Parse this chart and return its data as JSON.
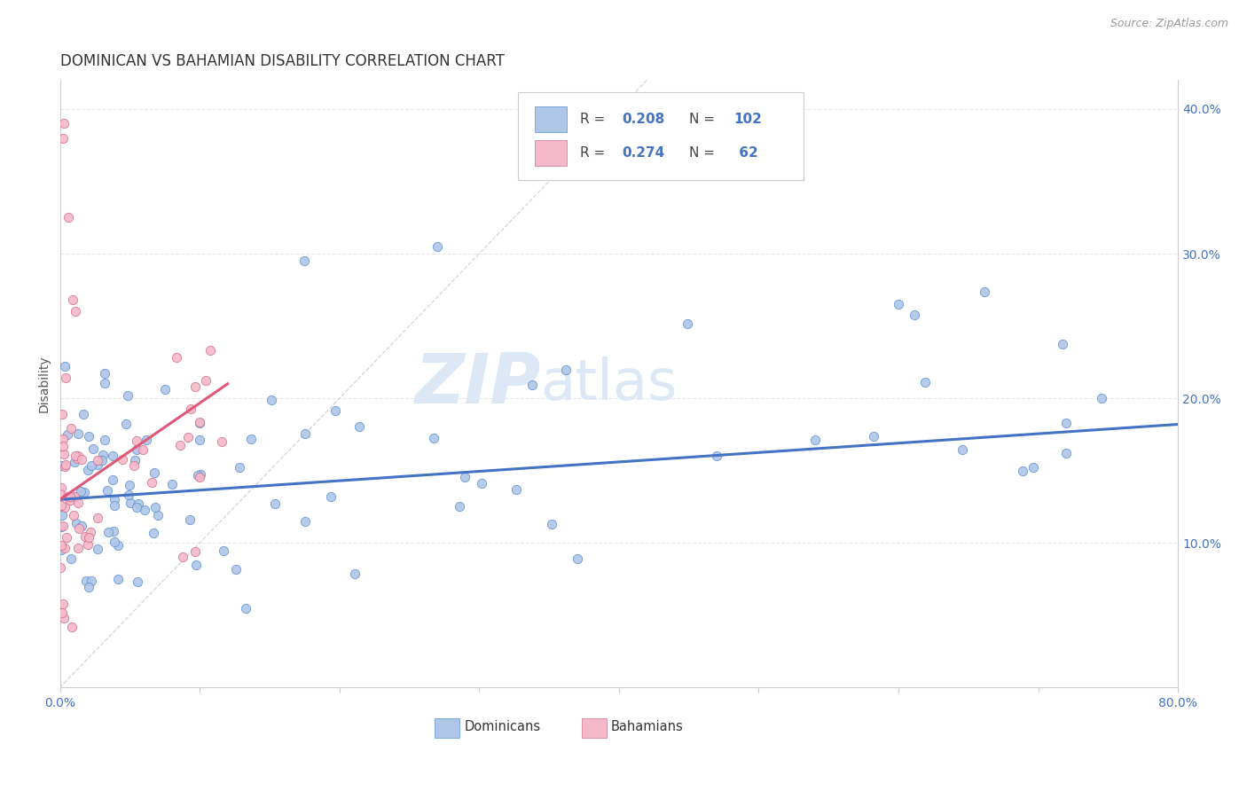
{
  "title": "DOMINICAN VS BAHAMIAN DISABILITY CORRELATION CHART",
  "source": "Source: ZipAtlas.com",
  "ylabel": "Disability",
  "xmin": 0.0,
  "xmax": 0.8,
  "ymin": 0.0,
  "ymax": 0.42,
  "dominican_R": 0.208,
  "dominican_N": 102,
  "bahamian_R": 0.274,
  "bahamian_N": 62,
  "scatter_color_dominican": "#aec6e8",
  "scatter_edge_dominican": "#6090d0",
  "scatter_color_bahamian": "#f5b8c8",
  "scatter_edge_bahamian": "#d07090",
  "line_color_dominican": "#4472c4",
  "line_color_bahamian": "#e05878",
  "diagonal_color": "#d0d0d0",
  "watermark_color": "#dce8f5",
  "title_fontsize": 12,
  "axis_label_fontsize": 10,
  "tick_fontsize": 10,
  "source_fontsize": 9
}
